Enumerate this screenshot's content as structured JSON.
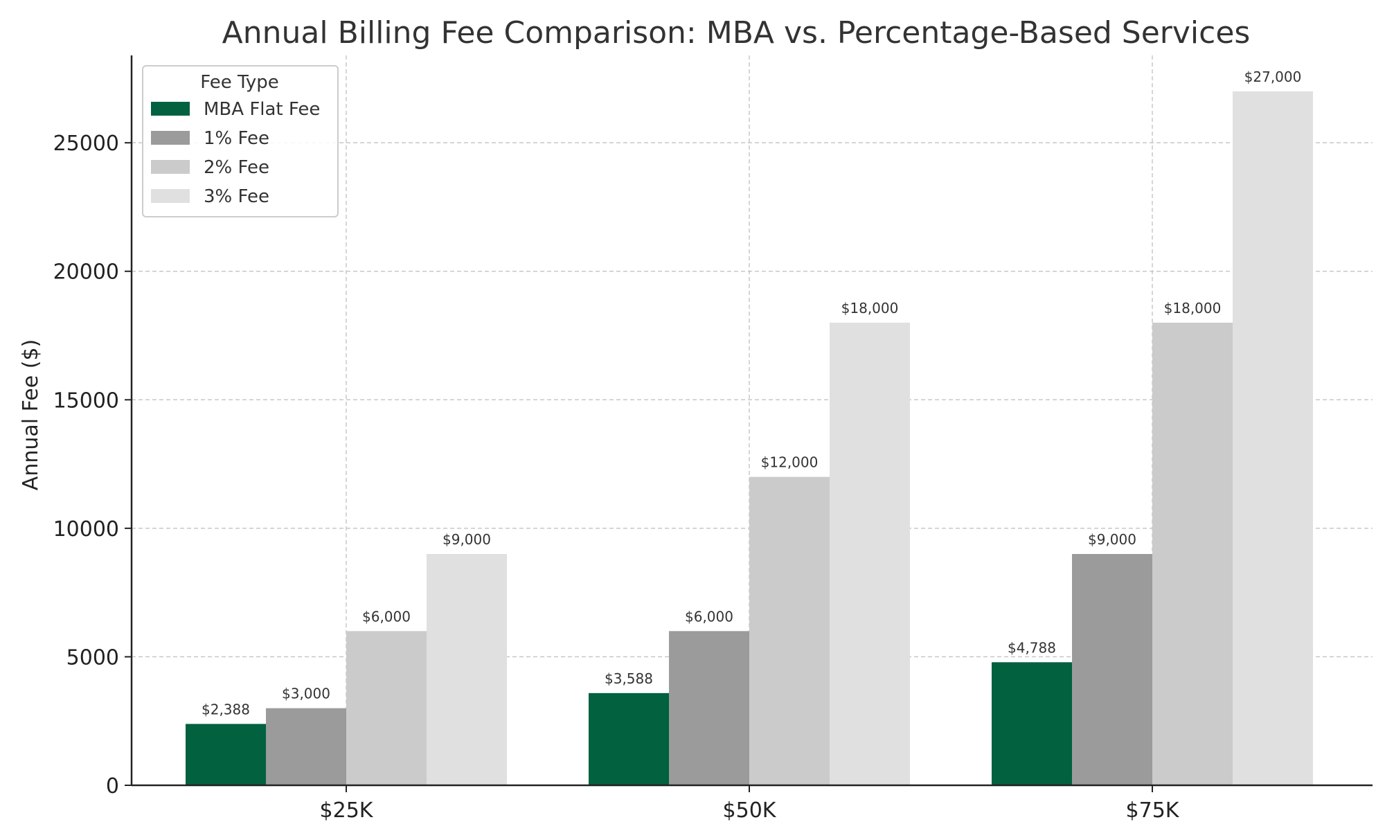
{
  "chart_data": {
    "type": "bar",
    "title": "Annual Billing Fee Comparison: MBA vs. Percentage-Based Services",
    "xlabel": "",
    "ylabel": "Annual Fee ($)",
    "categories": [
      "$25K",
      "$50K",
      "$75K"
    ],
    "ylim": [
      0,
      28400
    ],
    "yticks": [
      0,
      5000,
      10000,
      15000,
      20000,
      25000
    ],
    "ytick_labels": [
      "0",
      "5000",
      "10000",
      "15000",
      "20000",
      "25000"
    ],
    "grid": true,
    "legend_title": "Fee Type",
    "legend_position": "top-left",
    "series": [
      {
        "name": "MBA Flat Fee",
        "color": "#02613f",
        "values": [
          2388,
          3588,
          4788
        ],
        "labels": [
          "$2,388",
          "$3,588",
          "$4,788"
        ]
      },
      {
        "name": "1% Fee",
        "color": "#9b9b9b",
        "values": [
          3000,
          6000,
          9000
        ],
        "labels": [
          "$3,000",
          "$6,000",
          "$9,000"
        ]
      },
      {
        "name": "2% Fee",
        "color": "#cbcbcb",
        "values": [
          6000,
          12000,
          18000
        ],
        "labels": [
          "$6,000",
          "$12,000",
          "$18,000"
        ]
      },
      {
        "name": "3% Fee",
        "color": "#e0e0e0",
        "values": [
          9000,
          18000,
          27000
        ],
        "labels": [
          "$9,000",
          "$18,000",
          "$27,000"
        ]
      }
    ]
  }
}
